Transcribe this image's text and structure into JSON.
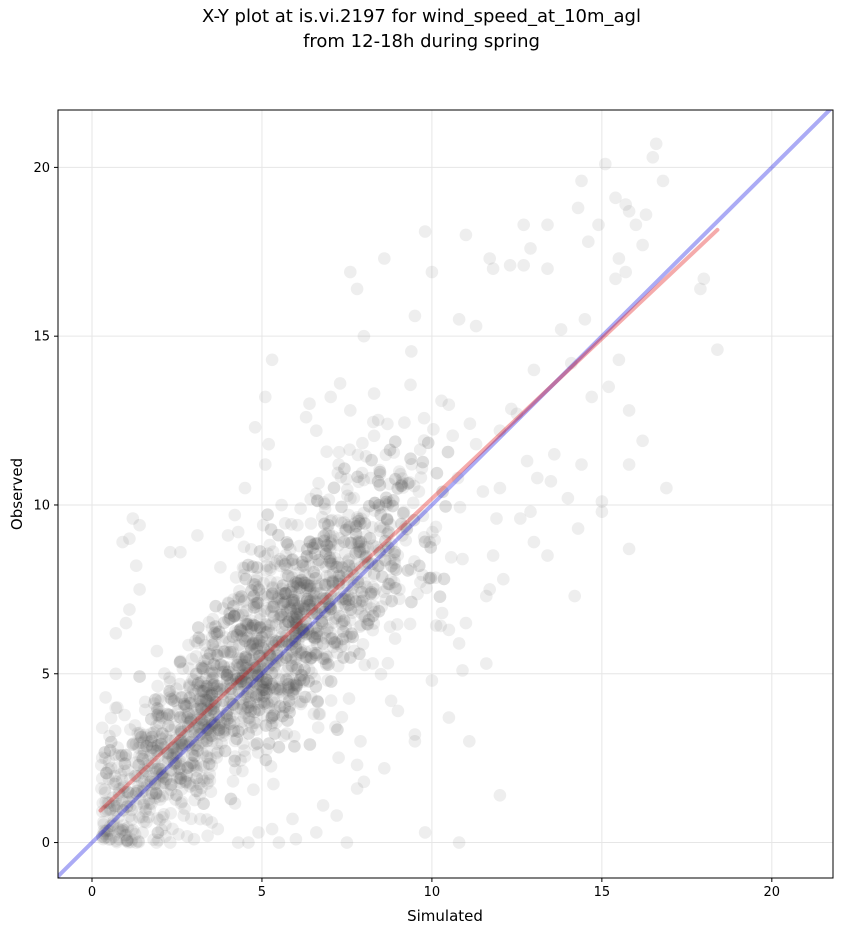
{
  "chart_data": {
    "type": "scatter",
    "title_line1": "X-Y plot at is.vi.2197 for wind_speed_at_10m_agl",
    "title_line2": "from 12-18h during spring",
    "xlabel": "Simulated",
    "ylabel": "Observed",
    "xlim": [
      -1.0,
      21.8
    ],
    "ylim": [
      -1.05,
      21.7
    ],
    "xticks": [
      0,
      5,
      10,
      15,
      20
    ],
    "yticks": [
      0,
      5,
      10,
      15,
      20
    ],
    "grid": true,
    "colors": {
      "points": "#555555",
      "one_to_one": "#0000e0",
      "fit": "#e00000"
    },
    "one_to_one_line": {
      "from": [
        -1.0,
        -1.0
      ],
      "to": [
        21.8,
        21.8
      ]
    },
    "fit_line": {
      "from": [
        0.25,
        0.95
      ],
      "to": [
        18.4,
        18.15
      ]
    },
    "outlier_points": [
      [
        16.6,
        20.7
      ],
      [
        16.5,
        20.3
      ],
      [
        16.8,
        19.6
      ],
      [
        15.1,
        20.1
      ],
      [
        14.4,
        19.6
      ],
      [
        15.4,
        19.1
      ],
      [
        15.7,
        18.9
      ],
      [
        16.3,
        18.6
      ],
      [
        15.8,
        18.7
      ],
      [
        16.0,
        18.3
      ],
      [
        14.3,
        18.8
      ],
      [
        14.9,
        18.3
      ],
      [
        14.6,
        17.8
      ],
      [
        12.7,
        18.3
      ],
      [
        13.4,
        18.3
      ],
      [
        12.9,
        17.6
      ],
      [
        11.7,
        17.3
      ],
      [
        12.3,
        17.1
      ],
      [
        12.7,
        17.1
      ],
      [
        13.4,
        17.0
      ],
      [
        15.4,
        16.7
      ],
      [
        15.7,
        16.9
      ],
      [
        16.2,
        17.7
      ],
      [
        15.5,
        17.3
      ],
      [
        18.0,
        16.7
      ],
      [
        17.9,
        16.4
      ],
      [
        18.4,
        14.6
      ],
      [
        16.9,
        10.5
      ],
      [
        15.8,
        11.2
      ],
      [
        16.2,
        11.9
      ],
      [
        15.8,
        12.8
      ],
      [
        15.8,
        8.7
      ],
      [
        15.0,
        9.8
      ],
      [
        15.0,
        10.1
      ],
      [
        14.3,
        9.3
      ],
      [
        14.2,
        7.3
      ],
      [
        14.0,
        10.2
      ],
      [
        14.4,
        11.2
      ],
      [
        13.6,
        11.5
      ],
      [
        13.5,
        10.7
      ],
      [
        13.1,
        10.8
      ],
      [
        12.9,
        9.8
      ],
      [
        13.4,
        8.5
      ],
      [
        13.0,
        8.9
      ],
      [
        12.6,
        9.6
      ],
      [
        12.0,
        10.5
      ],
      [
        11.9,
        9.6
      ],
      [
        11.8,
        8.5
      ],
      [
        12.1,
        7.8
      ],
      [
        11.7,
        7.5
      ],
      [
        11.6,
        7.3
      ],
      [
        10.9,
        8.4
      ],
      [
        11.0,
        6.5
      ],
      [
        10.8,
        5.9
      ],
      [
        10.9,
        5.1
      ],
      [
        11.6,
        5.3
      ],
      [
        10.3,
        6.8
      ],
      [
        10.5,
        6.3
      ],
      [
        10.0,
        4.8
      ],
      [
        10.5,
        3.7
      ],
      [
        9.8,
        0.3
      ],
      [
        10.8,
        0.0
      ],
      [
        12.0,
        1.4
      ],
      [
        11.1,
        3.0
      ],
      [
        9.5,
        3.2
      ],
      [
        9.5,
        3.0
      ],
      [
        8.8,
        4.2
      ],
      [
        9.0,
        3.9
      ],
      [
        8.6,
        2.2
      ],
      [
        7.8,
        2.3
      ],
      [
        7.8,
        1.6
      ],
      [
        7.2,
        0.8
      ],
      [
        7.5,
        0.0
      ],
      [
        8.0,
        1.8
      ],
      [
        7.9,
        3.0
      ],
      [
        7.6,
        16.9
      ],
      [
        7.8,
        16.4
      ],
      [
        8.6,
        17.3
      ],
      [
        9.8,
        18.1
      ],
      [
        11.0,
        18.0
      ],
      [
        11.8,
        17.0
      ],
      [
        10.0,
        16.9
      ],
      [
        10.8,
        15.5
      ],
      [
        11.3,
        15.3
      ],
      [
        9.5,
        15.6
      ],
      [
        8.0,
        15.0
      ],
      [
        8.3,
        13.3
      ],
      [
        7.3,
        13.6
      ],
      [
        7.6,
        12.8
      ],
      [
        6.4,
        13.0
      ],
      [
        6.3,
        12.6
      ],
      [
        6.6,
        12.2
      ],
      [
        5.3,
        14.3
      ],
      [
        5.1,
        13.2
      ],
      [
        4.8,
        12.3
      ],
      [
        5.2,
        11.8
      ],
      [
        5.1,
        11.2
      ],
      [
        4.5,
        10.5
      ],
      [
        4.2,
        9.7
      ],
      [
        4.3,
        9.2
      ],
      [
        4.0,
        9.1
      ],
      [
        1.4,
        9.4
      ],
      [
        1.2,
        9.6
      ],
      [
        1.1,
        9.0
      ],
      [
        0.9,
        8.9
      ],
      [
        1.3,
        8.2
      ],
      [
        1.4,
        7.5
      ],
      [
        2.3,
        8.6
      ],
      [
        2.6,
        8.6
      ],
      [
        3.1,
        9.1
      ],
      [
        0.7,
        6.2
      ],
      [
        1.0,
        6.5
      ],
      [
        1.1,
        6.9
      ],
      [
        0.7,
        5.0
      ],
      [
        0.4,
        4.3
      ],
      [
        0.3,
        3.4
      ],
      [
        0.5,
        2.4
      ],
      [
        0.3,
        1.9
      ],
      [
        0.4,
        1.2
      ],
      [
        0.6,
        0.5
      ],
      [
        0.8,
        0.1
      ],
      [
        1.3,
        0.0
      ],
      [
        1.9,
        0.0
      ],
      [
        2.3,
        0.0
      ],
      [
        3.0,
        0.1
      ],
      [
        3.4,
        0.2
      ],
      [
        4.3,
        0.0
      ],
      [
        4.6,
        0.0
      ],
      [
        5.5,
        0.0
      ],
      [
        6.0,
        0.1
      ],
      [
        6.6,
        0.3
      ],
      [
        5.9,
        0.7
      ],
      [
        6.8,
        1.1
      ],
      [
        5.3,
        0.4
      ],
      [
        4.9,
        0.3
      ],
      [
        3.7,
        0.4
      ],
      [
        2.7,
        0.8
      ],
      [
        1.6,
        0.6
      ],
      [
        13.0,
        14.0
      ],
      [
        13.8,
        15.2
      ],
      [
        14.5,
        15.5
      ],
      [
        14.1,
        14.2
      ],
      [
        14.7,
        13.2
      ],
      [
        15.2,
        13.5
      ],
      [
        15.5,
        14.3
      ],
      [
        12.5,
        12.7
      ],
      [
        12.8,
        11.3
      ],
      [
        12.0,
        12.2
      ],
      [
        11.3,
        11.8
      ],
      [
        11.5,
        10.4
      ]
    ]
  }
}
